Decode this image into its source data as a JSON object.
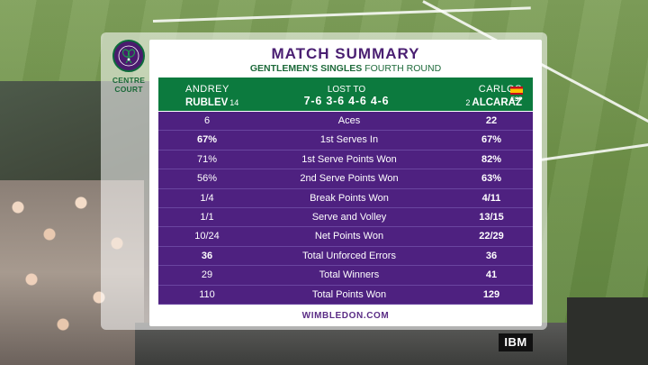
{
  "logo": {
    "icon": "wimbledon-crossed-rackets-icon",
    "venue_line1": "CENTRE",
    "venue_line2": "COURT"
  },
  "header": {
    "title": "MATCH SUMMARY",
    "subtitle_event": "GENTLEMEN'S SINGLES",
    "subtitle_round": "FOURTH ROUND"
  },
  "players": {
    "p1": {
      "first": "ANDREY",
      "last": "RUBLEV",
      "seed": "14"
    },
    "p2": {
      "first": "CARLOS",
      "last": "ALCARAZ",
      "seed": "2",
      "country": "ESP",
      "flag": "spain-flag-icon"
    }
  },
  "result": {
    "label": "LOST TO",
    "score": "7-6 3-6 4-6 4-6"
  },
  "stats": [
    {
      "p1": "6",
      "label": "Aces",
      "p2": "22",
      "p1_bold": false,
      "p2_bold": true
    },
    {
      "p1": "67%",
      "label": "1st Serves In",
      "p2": "67%",
      "p1_bold": true,
      "p2_bold": true
    },
    {
      "p1": "71%",
      "label": "1st Serve Points Won",
      "p2": "82%",
      "p1_bold": false,
      "p2_bold": true
    },
    {
      "p1": "56%",
      "label": "2nd Serve Points Won",
      "p2": "63%",
      "p1_bold": false,
      "p2_bold": true
    },
    {
      "p1": "1/4",
      "label": "Break Points Won",
      "p2": "4/11",
      "p1_bold": false,
      "p2_bold": true
    },
    {
      "p1": "1/1",
      "label": "Serve and Volley",
      "p2": "13/15",
      "p1_bold": false,
      "p2_bold": true
    },
    {
      "p1": "10/24",
      "label": "Net Points Won",
      "p2": "22/29",
      "p1_bold": false,
      "p2_bold": true
    },
    {
      "p1": "36",
      "label": "Total Unforced Errors",
      "p2": "36",
      "p1_bold": true,
      "p2_bold": true
    },
    {
      "p1": "29",
      "label": "Total Winners",
      "p2": "41",
      "p1_bold": false,
      "p2_bold": true
    },
    {
      "p1": "110",
      "label": "Total Points Won",
      "p2": "129",
      "p1_bold": false,
      "p2_bold": true
    }
  ],
  "footer": {
    "website": "WIMBLEDON.COM",
    "sponsor": "IBM"
  },
  "colors": {
    "purple": "#4e2180",
    "green": "#0c7a3e",
    "title_purple": "#4a1f72"
  }
}
